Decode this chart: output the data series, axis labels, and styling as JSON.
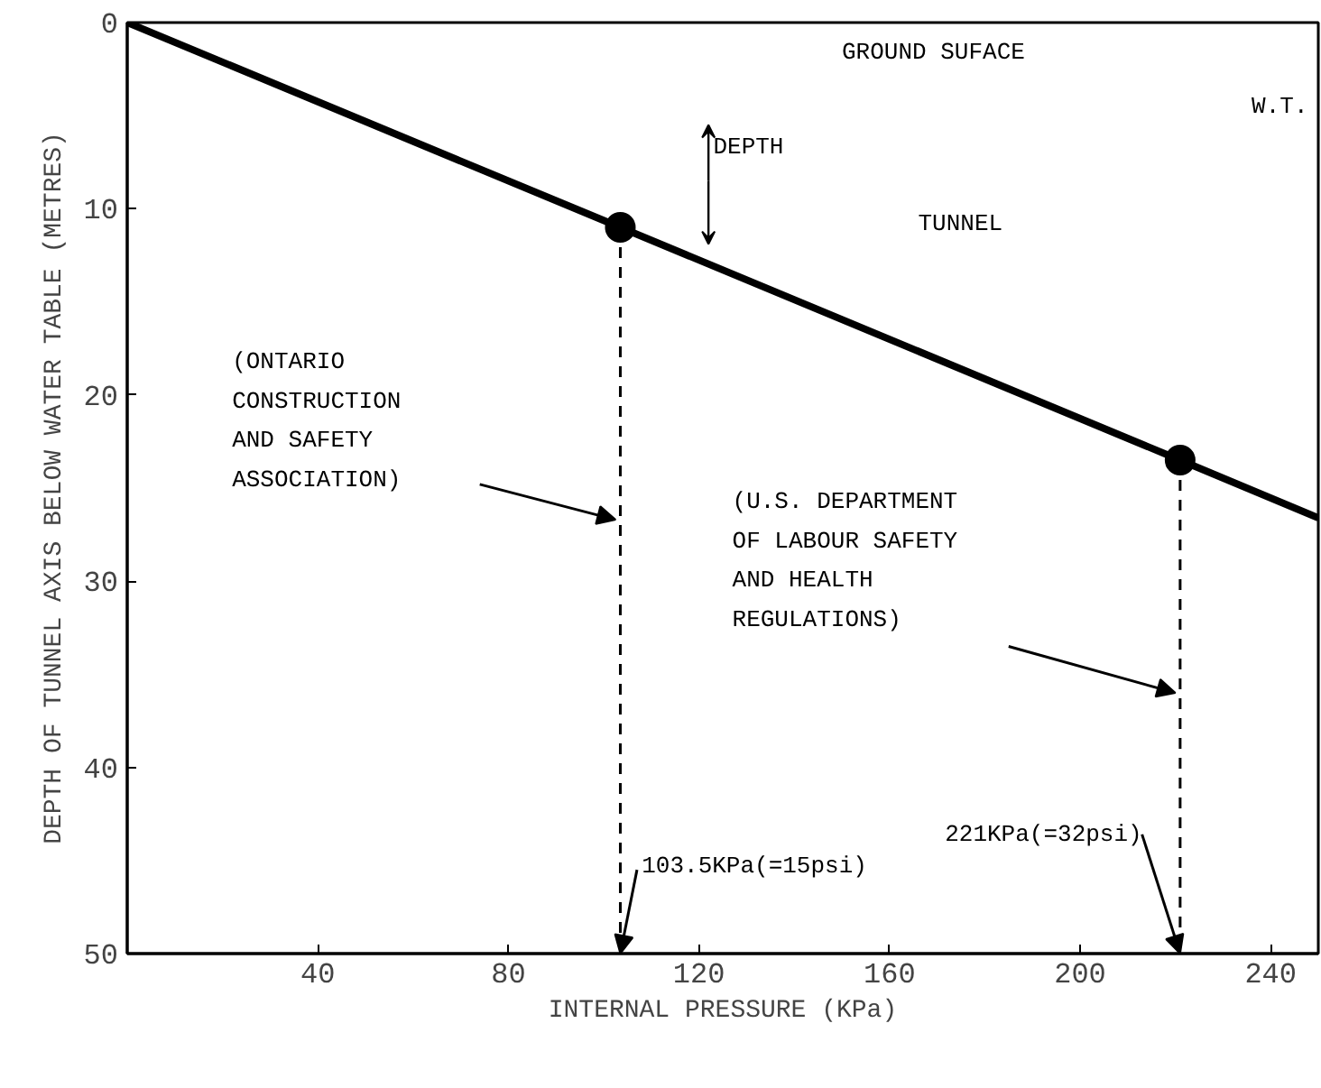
{
  "chart_data": {
    "type": "line",
    "xlabel": "INTERNAL PRESSURE (KPa)",
    "ylabel": "DEPTH OF TUNNEL AXIS BELOW WATER TABLE (METRES)",
    "xlim": [
      0,
      250
    ],
    "ylim": [
      50,
      0
    ],
    "xticks": [
      40,
      80,
      120,
      160,
      200,
      240
    ],
    "yticks": [
      0,
      10,
      20,
      30,
      40,
      50
    ],
    "grid": false,
    "series": [
      {
        "x": [
          0,
          103.5,
          221,
          250
        ],
        "values": [
          0,
          11,
          23.5,
          26.6
        ],
        "color": "#000000",
        "line_style": "solid",
        "marker": "none"
      },
      {
        "type": "scatter",
        "x": [
          103.5,
          221
        ],
        "values": [
          11,
          23.5
        ],
        "color": "#000000",
        "marker": "circle"
      },
      {
        "x": [
          103.5,
          103.5
        ],
        "values": [
          11,
          50
        ],
        "color": "#000000",
        "line_style": "dashed",
        "marker": "none"
      },
      {
        "x": [
          221,
          221
        ],
        "values": [
          23.5,
          50
        ],
        "color": "#000000",
        "line_style": "dashed",
        "marker": "none"
      }
    ],
    "annotations": [
      "(ONTARIO\nCONSTRUCTION\nAND SAFETY\nASSOCIATION)",
      "(U.S. DEPARTMENT\nOF LABOUR SAFETY\nAND HEALTH\nREGULATIONS)",
      {
        "text": "103.5KPa(=15psi)",
        "x": 103.5,
        "y": 50
      },
      {
        "text": "221KPa(=32psi)",
        "x": 221,
        "y": 50
      },
      "GROUND SUFACE",
      "W.T.",
      "DEPTH",
      "TUNNEL"
    ]
  }
}
